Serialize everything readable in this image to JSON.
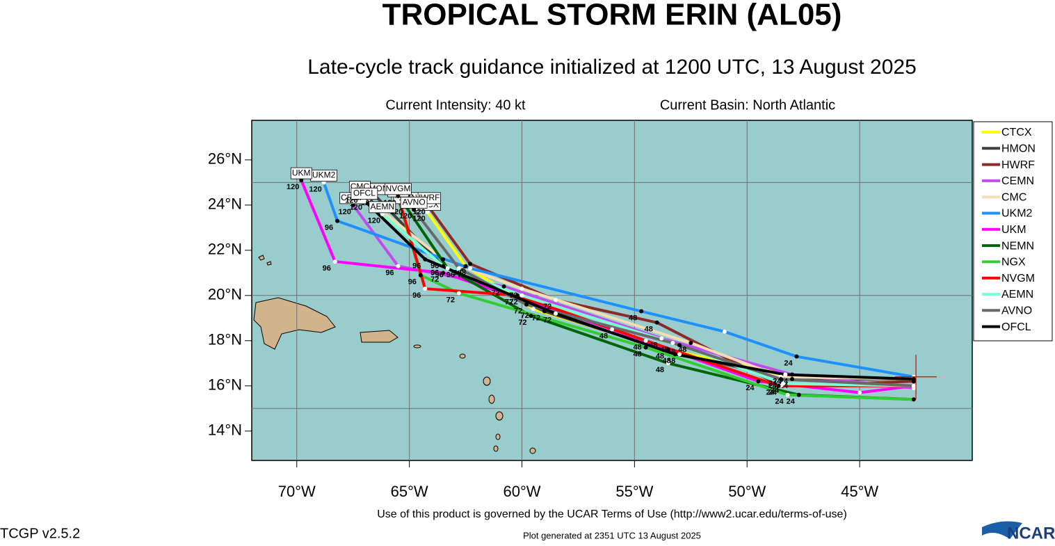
{
  "chart_data": {
    "type": "line",
    "title": "TROPICAL STORM ERIN (AL05)",
    "subtitle": "Late-cycle track guidance initialized at 1200 UTC, 13 August 2025",
    "intensity": "Current Intensity: 40 kt",
    "basin": "Current Basin: North Atlantic",
    "footer": "Use of this product is governed by the UCAR Terms of Use (http://www2.ucar.edu/terms-of-use)",
    "version": "TCGP v2.5.2",
    "generated": "Plot generated at 2351 UTC   13 August 2025",
    "logo": "NCAR",
    "xlim": [
      -72,
      -40
    ],
    "ylim": [
      12.7,
      27.75
    ],
    "xticks": [
      {
        "value": -70,
        "label": "70°W"
      },
      {
        "value": -65,
        "label": "65°W"
      },
      {
        "value": -60,
        "label": "60°W"
      },
      {
        "value": -55,
        "label": "55°W"
      },
      {
        "value": -50,
        "label": "50°W"
      },
      {
        "value": -45,
        "label": "45°W"
      }
    ],
    "yticks": [
      {
        "value": 14,
        "label": "14°N"
      },
      {
        "value": 16,
        "label": "16°N"
      },
      {
        "value": 18,
        "label": "18°N"
      },
      {
        "value": 20,
        "label": "20°N"
      },
      {
        "value": 22,
        "label": "22°N"
      },
      {
        "value": 24,
        "label": "24°N"
      },
      {
        "value": 26,
        "label": "26°N"
      }
    ],
    "ygrid": [
      15,
      20,
      25
    ],
    "grid": true,
    "storm_position": [
      -42.5,
      16.4
    ],
    "series": [
      {
        "name": "CTCX",
        "color": "#ffff00",
        "x": [
          -42.6,
          -48.3,
          -53.5,
          -59.5,
          -62.5,
          -64.2
        ],
        "y": [
          16.2,
          16.5,
          17.6,
          19.4,
          21.3,
          23.7
        ],
        "labels": [
          null,
          24,
          48,
          72,
          96,
          120
        ]
      },
      {
        "name": "HMON",
        "color": "#404040",
        "x": [
          -42.6,
          -48,
          -53,
          -59,
          -63.5,
          -66.5
        ],
        "y": [
          16.3,
          16.3,
          17.4,
          19.3,
          21.3,
          24.4
        ],
        "labels": [
          null,
          24,
          48,
          72,
          96,
          120
        ]
      },
      {
        "name": "HWRF",
        "color": "#8b2a2a",
        "x": [
          -42.6,
          -48.5,
          -54,
          -58.5,
          -62.3,
          -64.2
        ],
        "y": [
          16.2,
          16.0,
          18.8,
          19.8,
          21.4,
          24.0
        ],
        "labels": [
          null,
          24,
          48,
          72,
          96,
          120
        ]
      },
      {
        "name": "CEMN",
        "color": "#c04cf0",
        "x": [
          -42.6,
          -48,
          -53.8,
          -60.8,
          -65.5,
          -67.5
        ],
        "y": [
          15.9,
          16.5,
          18.1,
          20.4,
          21.3,
          24.0
        ],
        "labels": [
          null,
          24,
          48,
          72,
          96,
          120
        ]
      },
      {
        "name": "CMC",
        "color": "#f5deb3",
        "x": [
          -42.6,
          -48.5,
          -52.5,
          -60,
          -63.5,
          -67.2
        ],
        "y": [
          16.3,
          16.4,
          17.9,
          20.3,
          21.6,
          24.5
        ],
        "labels": [
          null,
          24,
          48,
          72,
          96,
          120
        ]
      },
      {
        "name": "UKM2",
        "color": "#1e90ff",
        "x": [
          -42.6,
          -47.8,
          -51,
          -54.7,
          -62.3,
          -68.2,
          -68.8
        ],
        "y": [
          16.4,
          17.3,
          18.4,
          19.3,
          21.2,
          23.3,
          25.0
        ],
        "labels": [
          null,
          24,
          null,
          48,
          72,
          96,
          120
        ]
      },
      {
        "name": "UKM",
        "color": "#ff00ff",
        "x": [
          -42.6,
          -45,
          -49.5,
          -56,
          -63.5,
          -68.3,
          -69.8
        ],
        "y": [
          16.0,
          15.7,
          16.2,
          18.5,
          21.0,
          21.5,
          25.1
        ],
        "labels": [
          null,
          null,
          24,
          48,
          72,
          96,
          120
        ]
      },
      {
        "name": "NEMN",
        "color": "#006400",
        "x": [
          -42.6,
          -47.7,
          -53.5,
          -59.6,
          -63.3,
          -65.2
        ],
        "y": [
          15.4,
          15.6,
          17.0,
          19.1,
          21.2,
          24.0
        ],
        "labels": [
          null,
          24,
          48,
          72,
          96,
          120
        ]
      },
      {
        "name": "NGX",
        "color": "#32cd32",
        "x": [
          -42.6,
          -48.2,
          -54.5,
          -62.8,
          -64.5,
          -65.5
        ],
        "y": [
          15.4,
          15.6,
          17.7,
          20.1,
          20.9,
          24.3
        ],
        "labels": [
          null,
          24,
          48,
          72,
          96,
          120
        ]
      },
      {
        "name": "NVGM",
        "color": "#ff0000",
        "x": [
          -42.6,
          -48.6,
          -54.5,
          -60.2,
          -64.3,
          -65.5
        ],
        "y": [
          16.0,
          16.0,
          18.0,
          20.0,
          20.3,
          24.4
        ],
        "labels": [
          null,
          24,
          48,
          72,
          96,
          120
        ]
      },
      {
        "name": "AEMN",
        "color": "#7fffd4",
        "x": [
          -42.6,
          -48.4,
          -53,
          -60,
          -63.5,
          -66.2
        ],
        "y": [
          16.0,
          16.1,
          17.8,
          20.0,
          21.3,
          23.6
        ],
        "labels": [
          null,
          24,
          48,
          72,
          96,
          120
        ]
      },
      {
        "name": "AVNO",
        "color": "#696969",
        "x": [
          -42.6,
          -48.5,
          -53.3,
          -59.8,
          -62.8,
          -64.8
        ],
        "y": [
          16.0,
          16.3,
          17.9,
          19.6,
          21.2,
          23.8
        ],
        "labels": [
          null,
          24,
          48,
          72,
          96,
          120
        ]
      },
      {
        "name": "OFCL",
        "color": "#000000",
        "x": [
          -42.6,
          -48.3,
          -53.2,
          -58.5,
          -64.3,
          -67
        ],
        "y": [
          16.3,
          16.5,
          17.4,
          19.2,
          21.6,
          24.2
        ],
        "labels": [
          null,
          24,
          48,
          72,
          96,
          120
        ]
      }
    ]
  }
}
